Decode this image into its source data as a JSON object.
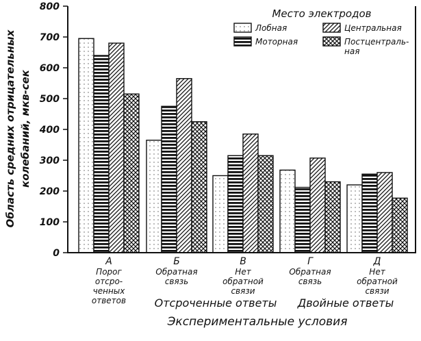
{
  "chart_data": {
    "type": "bar",
    "ylabel_line1": "Область средних отрицательных",
    "ylabel_line2": "колебаний, мкв-сек",
    "xlabel": "Экспериментальные условия",
    "ylim": [
      0,
      800
    ],
    "yticks": [
      0,
      100,
      200,
      300,
      400,
      500,
      600,
      700,
      800
    ],
    "legend_title": "Место электродов",
    "legend_placement": "top-right",
    "categories": [
      {
        "letter": "А",
        "lines": [
          "Порог",
          "отсро-",
          "ченных",
          "ответов"
        ]
      },
      {
        "letter": "Б",
        "lines": [
          "Обратная",
          "связь"
        ]
      },
      {
        "letter": "В",
        "lines": [
          "Нет",
          "обратной",
          "связи"
        ]
      },
      {
        "letter": "Г",
        "lines": [
          "Обратная",
          "связь"
        ]
      },
      {
        "letter": "Д",
        "lines": [
          "Нет",
          "обратной",
          "связи"
        ]
      }
    ],
    "groups": [
      {
        "label": "Отсроченные ответы",
        "from": 0,
        "to": 2
      },
      {
        "label": "Двойные ответы",
        "from": 3,
        "to": 4
      }
    ],
    "series": [
      {
        "name": "Лобная",
        "pattern": "dots",
        "values": [
          695,
          365,
          250,
          268,
          220
        ]
      },
      {
        "name": "Моторная",
        "pattern": "hlines",
        "values": [
          640,
          475,
          315,
          212,
          255
        ]
      },
      {
        "name": "Центральная",
        "pattern": "diag",
        "values": [
          680,
          565,
          385,
          307,
          260
        ]
      },
      {
        "name": "Постцентраль-ная",
        "name_line1": "Постцентраль-",
        "name_line2": "ная",
        "pattern": "cross",
        "values": [
          515,
          425,
          315,
          230,
          177
        ]
      }
    ]
  }
}
